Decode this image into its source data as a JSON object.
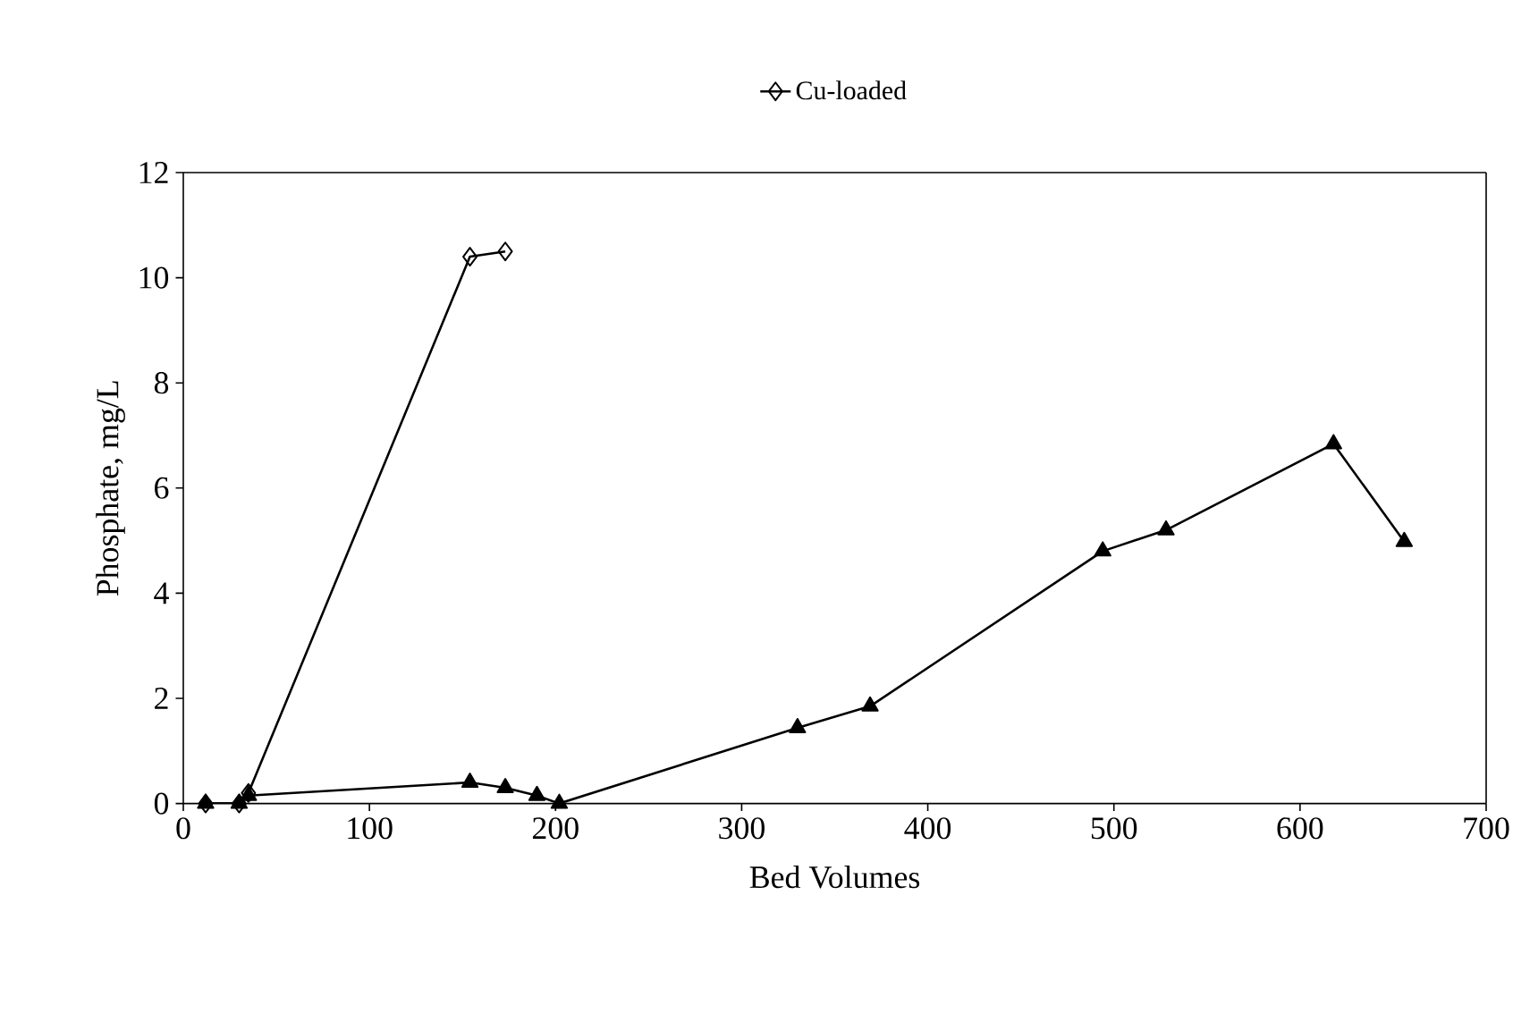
{
  "chart_data": {
    "type": "line",
    "xlabel": "Bed Volumes",
    "ylabel": "Phosphate, mg/L",
    "xlim": [
      0,
      700
    ],
    "xticks": [
      0,
      100,
      200,
      300,
      400,
      500,
      600,
      700
    ],
    "ylim": [
      0,
      12
    ],
    "yticks": [
      0,
      2,
      4,
      6,
      8,
      10,
      12
    ],
    "legend": "top",
    "grid": false,
    "line_style": "solid",
    "series": [
      {
        "name": "Cu-loaded",
        "color": "#000000",
        "marker": "diamond",
        "x": [
          12,
          30,
          35,
          154,
          173
        ],
        "values": [
          0,
          0,
          0.2,
          10.4,
          10.5
        ]
      },
      {
        "color": "#000000",
        "marker": "triangle",
        "x": [
          12,
          30,
          35,
          154,
          173,
          190,
          202,
          330,
          369,
          494,
          528,
          618,
          656
        ],
        "values": [
          0,
          0,
          0.15,
          0.4,
          0.3,
          0.15,
          0,
          1.44,
          1.85,
          4.8,
          5.2,
          6.84,
          4.98
        ]
      }
    ]
  }
}
